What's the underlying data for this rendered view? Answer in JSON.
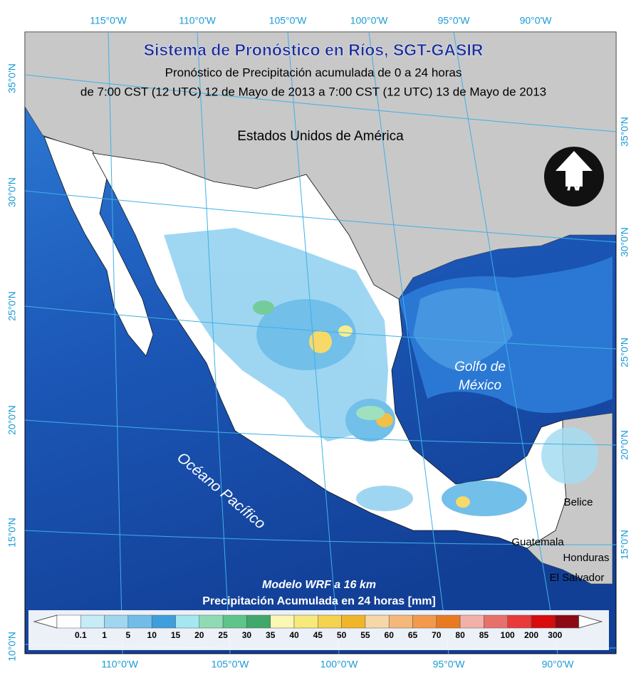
{
  "header": {
    "title": "Sistema de Pronóstico en Ríos, SGT-GASIR",
    "subtitle_1": "Pronóstico de Precipitación acumulada de 0 a 24 horas",
    "subtitle_2": "de 7:00 CST (12 UTC) 12 de Mayo de 2013 a 7:00 CST (12 UTC) 13 de Mayo de 2013"
  },
  "map_labels": {
    "usa": "Estados Unidos de América",
    "gulf_1": "Golfo de",
    "gulf_2": "México",
    "pacific": "Océano Pacífico",
    "belize": "Belice",
    "guatemala": "Guatemala",
    "honduras": "Honduras",
    "el_salvador": "El Salvador"
  },
  "graticule": {
    "top": [
      "115°0'W",
      "110°0'W",
      "105°0'W",
      "100°0'W",
      "95°0'W",
      "90°0'W"
    ],
    "bottom": [
      "110°0'W",
      "105°0'W",
      "100°0'W",
      "95°0'W",
      "90°0'W"
    ],
    "left": [
      "35°0'N",
      "30°0'N",
      "25°0'N",
      "20°0'N",
      "15°0'N",
      "10°0'N"
    ],
    "right": [
      "35°0'N",
      "30°0'N",
      "25°0'N",
      "20°0'N",
      "15°0'N"
    ]
  },
  "legend": {
    "model": "Modelo WRF a 16 km",
    "title": "Precipitación Acumulada en 24 horas [mm]",
    "labels": [
      "0.1",
      "1",
      "5",
      "10",
      "15",
      "20",
      "25",
      "30",
      "35",
      "40",
      "45",
      "50",
      "55",
      "60",
      "65",
      "70",
      "80",
      "85",
      "100",
      "200",
      "300"
    ],
    "colors": [
      "#ffffff",
      "#c6ecf8",
      "#9fd6f0",
      "#72bde8",
      "#3f9edc",
      "#a5e7f0",
      "#8fdcb4",
      "#5ec48a",
      "#3fa86a",
      "#fbf7b4",
      "#f7e97c",
      "#f5d34e",
      "#f0b528",
      "#f6d8a8",
      "#f5b87a",
      "#f29a4a",
      "#ea7a20",
      "#f2b0a8",
      "#e8706a",
      "#e83a3a",
      "#d80c0c",
      "#8c0a14"
    ]
  }
}
